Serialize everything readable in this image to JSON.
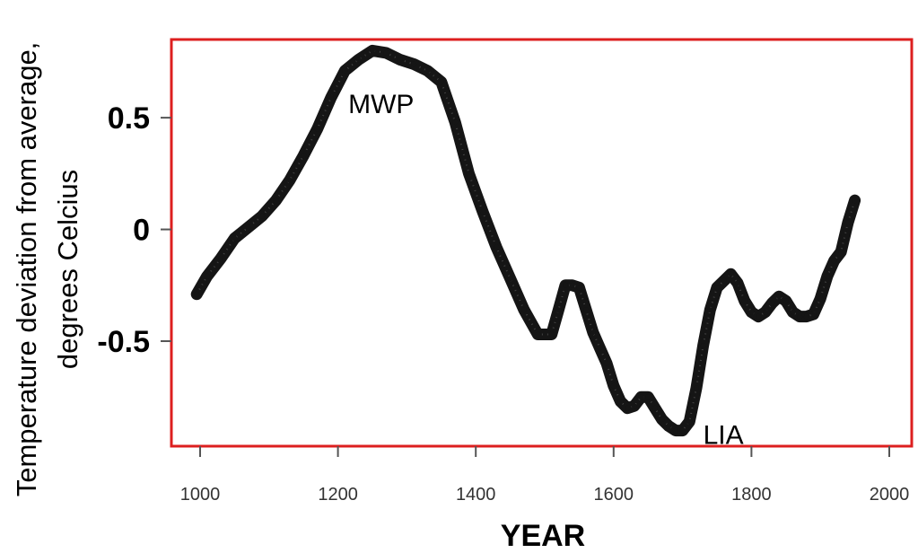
{
  "chart_data": {
    "type": "line",
    "title": "",
    "xlabel": "YEAR",
    "ylabel_lines": [
      "Temperature deviation from average,",
      "degrees Celcius"
    ],
    "xlim": [
      1000,
      2000
    ],
    "ylim": [
      -0.97,
      0.85
    ],
    "x_ticks": [
      1000,
      1200,
      1400,
      1600,
      1800,
      2000
    ],
    "y_ticks": [
      {
        "value": 0.5,
        "label": "0.5"
      },
      {
        "value": 0,
        "label": "0"
      },
      {
        "value": -0.5,
        "label": "-0.5"
      }
    ],
    "grid": false,
    "frame_color": "#dd1f1f",
    "line_color": "#151515",
    "series": [
      {
        "x": [
          995,
          1010,
          1030,
          1050,
          1070,
          1090,
          1110,
          1130,
          1150,
          1170,
          1190,
          1210,
          1230,
          1250,
          1270,
          1290,
          1310,
          1330,
          1350,
          1370,
          1390,
          1410,
          1430,
          1450,
          1470,
          1490,
          1510,
          1520,
          1530,
          1540,
          1550,
          1560,
          1570,
          1580,
          1590,
          1600,
          1610,
          1620,
          1630,
          1640,
          1650,
          1660,
          1670,
          1680,
          1690,
          1700,
          1710,
          1720,
          1730,
          1740,
          1750,
          1760,
          1770,
          1780,
          1790,
          1800,
          1810,
          1820,
          1830,
          1840,
          1850,
          1860,
          1870,
          1880,
          1890,
          1900,
          1910,
          1920,
          1930,
          1940,
          1950
        ],
        "y": [
          -0.29,
          -0.21,
          -0.13,
          -0.04,
          0.01,
          0.06,
          0.13,
          0.22,
          0.33,
          0.45,
          0.59,
          0.71,
          0.76,
          0.8,
          0.79,
          0.76,
          0.74,
          0.71,
          0.66,
          0.48,
          0.25,
          0.08,
          -0.08,
          -0.22,
          -0.36,
          -0.47,
          -0.47,
          -0.36,
          -0.25,
          -0.25,
          -0.26,
          -0.36,
          -0.46,
          -0.53,
          -0.6,
          -0.7,
          -0.77,
          -0.8,
          -0.79,
          -0.75,
          -0.75,
          -0.8,
          -0.85,
          -0.88,
          -0.9,
          -0.9,
          -0.86,
          -0.71,
          -0.52,
          -0.36,
          -0.26,
          -0.23,
          -0.2,
          -0.24,
          -0.32,
          -0.37,
          -0.39,
          -0.37,
          -0.33,
          -0.3,
          -0.32,
          -0.37,
          -0.39,
          -0.39,
          -0.38,
          -0.31,
          -0.21,
          -0.14,
          -0.1,
          0.03,
          0.13
        ]
      }
    ],
    "annotations": [
      {
        "text": "MWP",
        "x": 1215,
        "y": 0.52
      },
      {
        "text": "LIA",
        "x": 1730,
        "y": -0.96
      }
    ]
  }
}
